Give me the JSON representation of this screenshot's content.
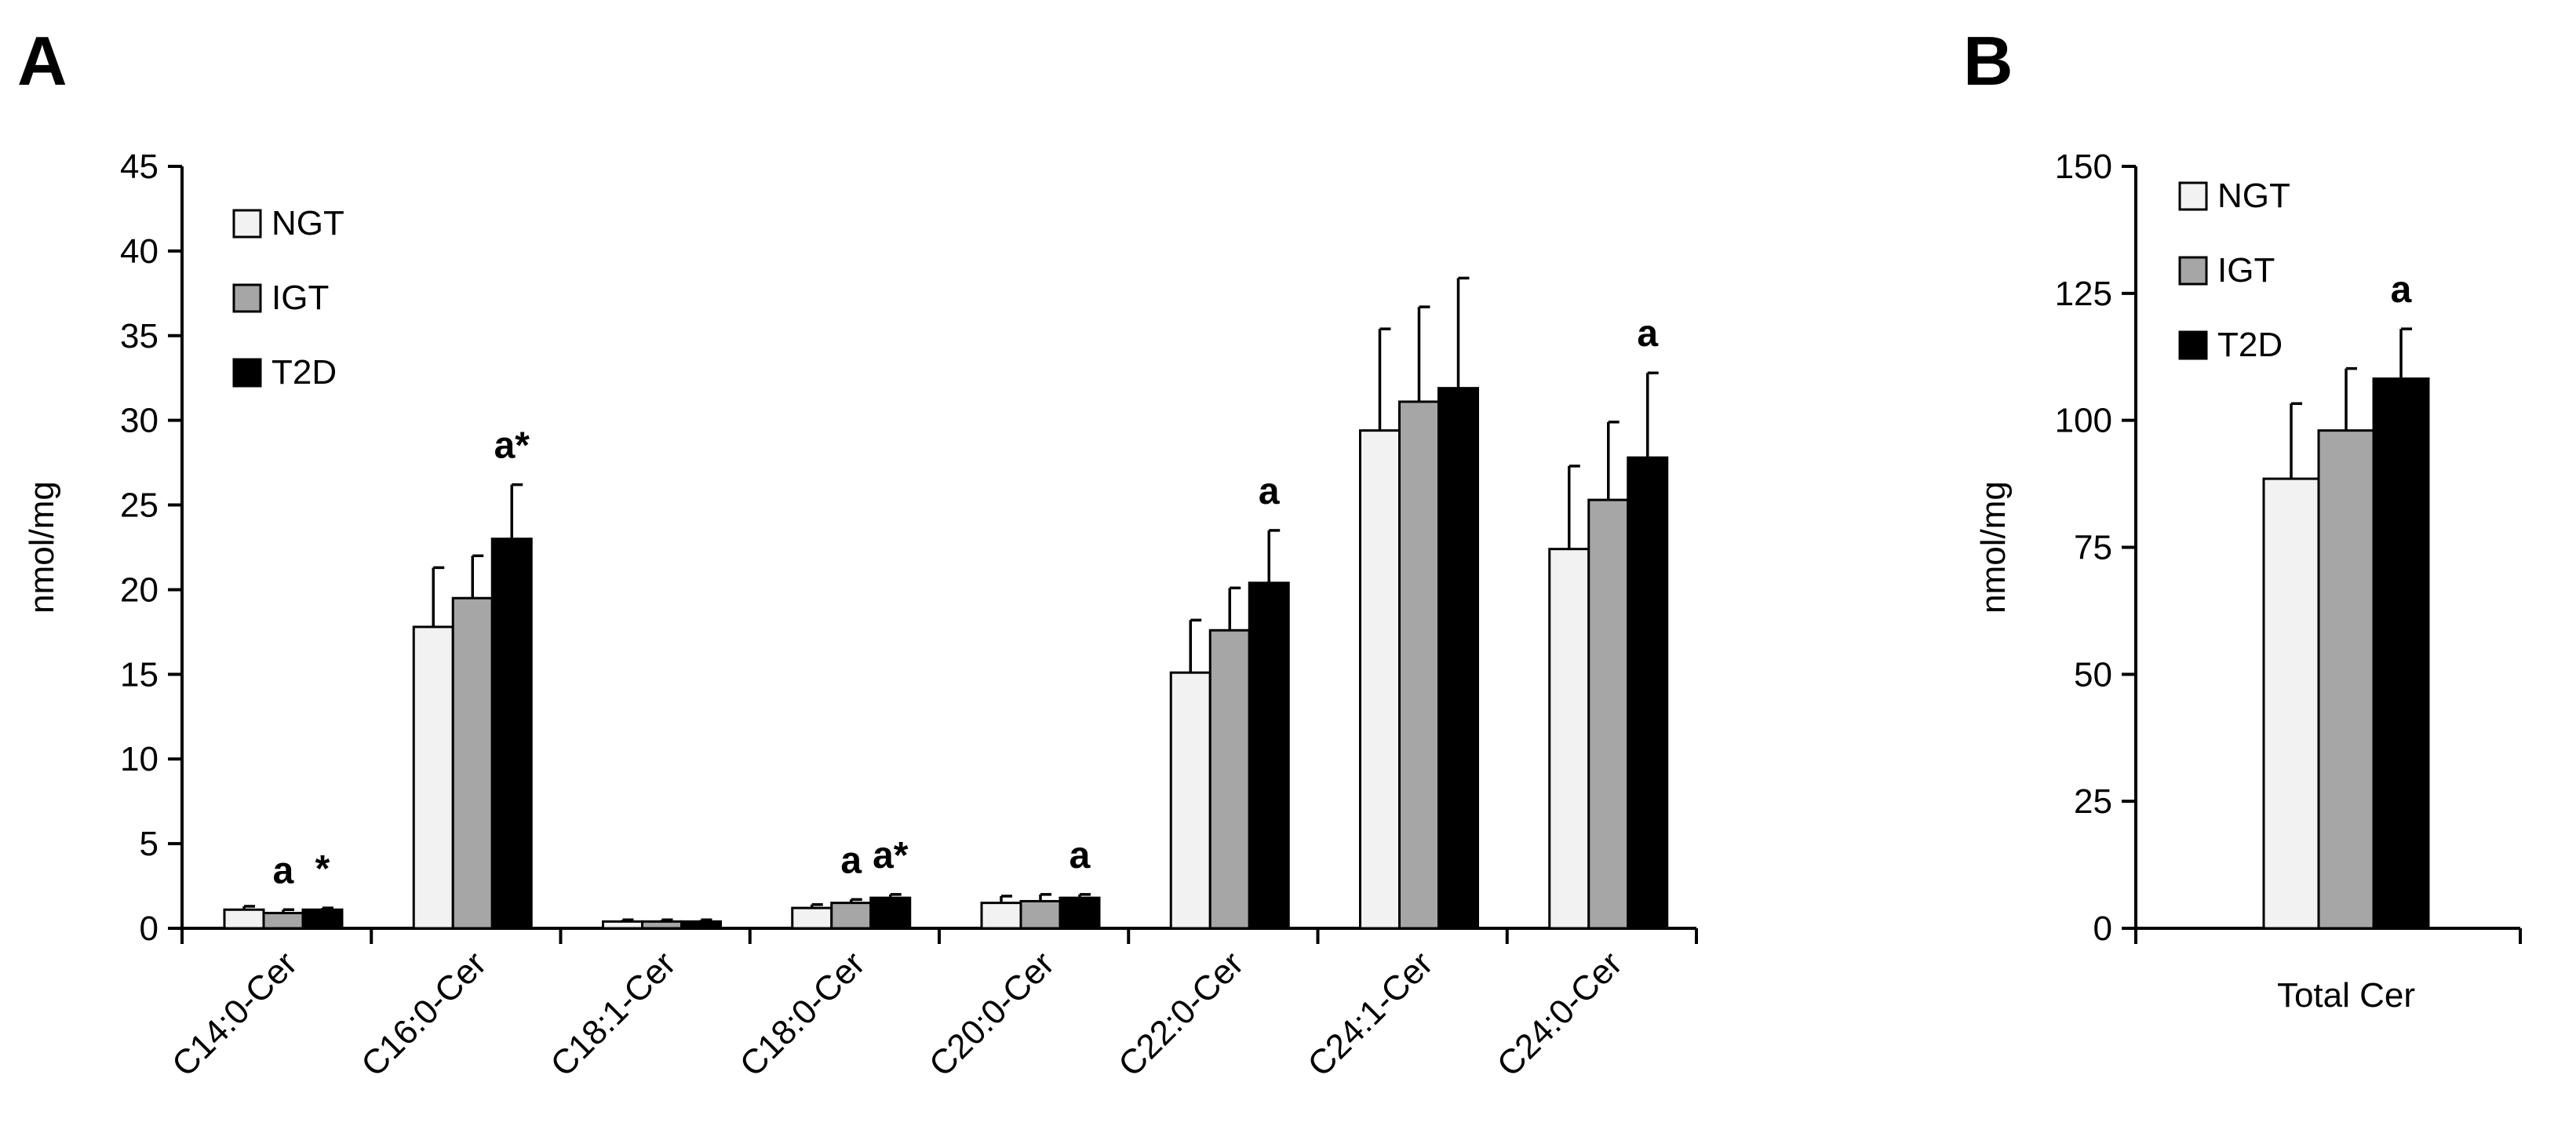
{
  "chart_data": [
    {
      "panel": "A",
      "type": "bar",
      "ylabel": "nmol/mg",
      "ylim": [
        0,
        45
      ],
      "yticks": [
        0,
        5,
        10,
        15,
        20,
        25,
        30,
        35,
        40,
        45
      ],
      "categories": [
        "C14:0-Cer",
        "C16:0-Cer",
        "C18:1-Cer",
        "C18:0-Cer",
        "C20:0-Cer",
        "C22:0-Cer",
        "C24:1-Cer",
        "C24:0-Cer"
      ],
      "legend_position": "top-left",
      "series": [
        {
          "name": "NGT",
          "color": "#f2f2f2",
          "values": [
            1.1,
            17.8,
            0.4,
            1.2,
            1.5,
            15.1,
            29.4,
            22.4
          ],
          "errors": [
            0.2,
            3.5,
            0.1,
            0.2,
            0.4,
            3.1,
            6.0,
            4.9
          ]
        },
        {
          "name": "IGT",
          "color": "#a6a6a6",
          "values": [
            0.9,
            19.5,
            0.4,
            1.5,
            1.6,
            17.6,
            31.1,
            25.3
          ],
          "errors": [
            0.2,
            2.5,
            0.1,
            0.2,
            0.4,
            2.5,
            5.6,
            4.6
          ]
        },
        {
          "name": "T2D",
          "color": "#000000",
          "values": [
            1.1,
            23.0,
            0.4,
            1.8,
            1.8,
            20.4,
            31.9,
            27.8
          ],
          "errors": [
            0.1,
            3.2,
            0.1,
            0.2,
            0.2,
            3.1,
            6.5,
            5.0
          ]
        }
      ],
      "annotations": [
        {
          "category": "C14:0-Cer",
          "series": "IGT",
          "text": "a"
        },
        {
          "category": "C14:0-Cer",
          "series": "T2D",
          "text": "*"
        },
        {
          "category": "C16:0-Cer",
          "series": "T2D",
          "text": "a*"
        },
        {
          "category": "C18:0-Cer",
          "series": "IGT",
          "text": "a"
        },
        {
          "category": "C18:0-Cer",
          "series": "T2D",
          "text": "a*"
        },
        {
          "category": "C20:0-Cer",
          "series": "T2D",
          "text": "a"
        },
        {
          "category": "C22:0-Cer",
          "series": "T2D",
          "text": "a"
        },
        {
          "category": "C24:0-Cer",
          "series": "T2D",
          "text": "a"
        }
      ]
    },
    {
      "panel": "B",
      "type": "bar",
      "ylabel": "nmol/mg",
      "ylim": [
        0,
        150
      ],
      "yticks": [
        0,
        25,
        50,
        75,
        100,
        125,
        150
      ],
      "categories": [
        "Total Cer"
      ],
      "legend_position": "top-left",
      "series": [
        {
          "name": "NGT",
          "color": "#f2f2f2",
          "values": [
            88.5
          ],
          "errors": [
            14.8
          ]
        },
        {
          "name": "IGT",
          "color": "#a6a6a6",
          "values": [
            98.0
          ],
          "errors": [
            12.2
          ]
        },
        {
          "name": "T2D",
          "color": "#000000",
          "values": [
            108.2
          ],
          "errors": [
            9.8
          ]
        }
      ],
      "annotations": [
        {
          "category": "Total Cer",
          "series": "T2D",
          "text": "a"
        }
      ]
    }
  ]
}
